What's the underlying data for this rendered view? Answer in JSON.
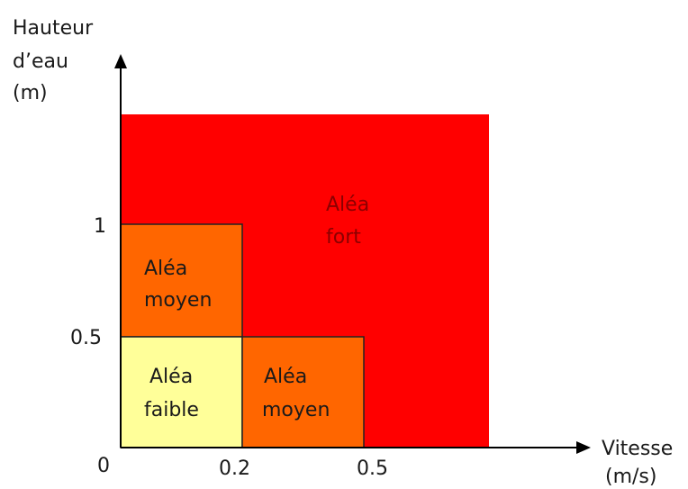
{
  "y_axis": {
    "label_lines": [
      "Hauteur",
      "d’eau",
      "(m)"
    ],
    "ticks": [
      "1",
      "0.5",
      "0"
    ]
  },
  "x_axis": {
    "label_lines": [
      "Vitesse",
      "(m/s)"
    ],
    "ticks": [
      "0.2",
      "0.5"
    ]
  },
  "zones": {
    "fort": {
      "lines": [
        "Aléa",
        "fort"
      ],
      "color": "#ff0000",
      "text_color": "#8b0000"
    },
    "moyen_top": {
      "lines": [
        "Aléa",
        "moyen"
      ],
      "color": "#ff6600"
    },
    "faible": {
      "lines": [
        "Aléa",
        "faible"
      ],
      "color": "#ffff99"
    },
    "moyen_right": {
      "lines": [
        "Aléa",
        "moyen"
      ],
      "color": "#ff6600"
    }
  }
}
